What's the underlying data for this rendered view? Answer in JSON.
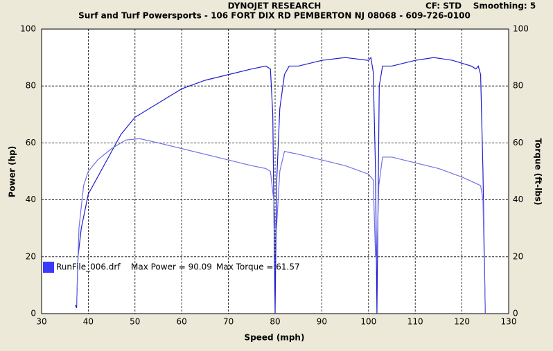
{
  "chart_data": {
    "type": "line",
    "title": "DYNOJET RESEARCH",
    "subtitle": "Surf and Turf Powersports - 106 FORT DIX RD PEMBERTON NJ 08068 - 609-726-0100",
    "cf": "CF: STD",
    "smoothing": "Smoothing: 5",
    "x_label": "Speed (mph)",
    "y_label": "Power (hp)",
    "y2_label": "Torque (ft-lbs)",
    "xlim": [
      30,
      130
    ],
    "xticks": [
      30,
      40,
      50,
      60,
      70,
      80,
      90,
      100,
      110,
      120,
      130
    ],
    "ylim": [
      0,
      100
    ],
    "yticks": [
      0,
      20,
      40,
      60,
      80,
      100
    ],
    "y2lim": [
      0,
      100
    ],
    "y2ticks": [
      0,
      20,
      40,
      60,
      80,
      100
    ],
    "grid": true,
    "legend": {
      "run": "RunFile_006.drf",
      "max_power": "Max Power = 90.09",
      "max_torque": "Max Torque = 61.57",
      "color": "#3a3aff"
    },
    "series": [
      {
        "color": "#1c1ccc",
        "axis": "y",
        "x": [
          37.2,
          37.5,
          37.8,
          38.5,
          40,
          42,
          45,
          47,
          50,
          55,
          60,
          65,
          70,
          75,
          78,
          79,
          79.5,
          80,
          80.3,
          81,
          82,
          83,
          85,
          90,
          95,
          100,
          100.5,
          101,
          101.5,
          101.8,
          102.3,
          103,
          105,
          110,
          114,
          118,
          122,
          123,
          123.5,
          124,
          124.5,
          125
        ],
        "values": [
          3,
          2,
          20,
          30,
          42,
          48,
          57,
          63,
          69,
          74,
          79,
          82,
          84,
          86,
          87,
          86,
          70,
          0,
          45,
          72,
          84,
          87,
          87,
          89,
          90,
          89,
          90,
          85,
          50,
          0,
          80,
          87,
          87,
          89,
          90,
          89,
          87,
          86,
          87,
          84,
          50,
          0
        ]
      },
      {
        "color": "#7070e6",
        "axis": "y2",
        "x": [
          37.5,
          38,
          39,
          40,
          42,
          45,
          48,
          51,
          55,
          60,
          65,
          70,
          75,
          78,
          79,
          79.7,
          80,
          80.3,
          81,
          82,
          85,
          90,
          95,
          100,
          101,
          101.5,
          101.8,
          102.2,
          103,
          105,
          110,
          115,
          120,
          124,
          124.5,
          125
        ],
        "values": [
          3,
          30,
          45,
          50,
          54,
          58,
          61,
          61.5,
          60,
          58,
          56,
          54,
          52,
          51,
          50,
          40,
          30,
          30,
          50,
          57,
          56,
          54,
          52,
          49,
          47,
          20,
          20,
          45,
          55,
          55,
          53,
          51,
          48,
          45,
          40,
          0
        ]
      }
    ]
  }
}
